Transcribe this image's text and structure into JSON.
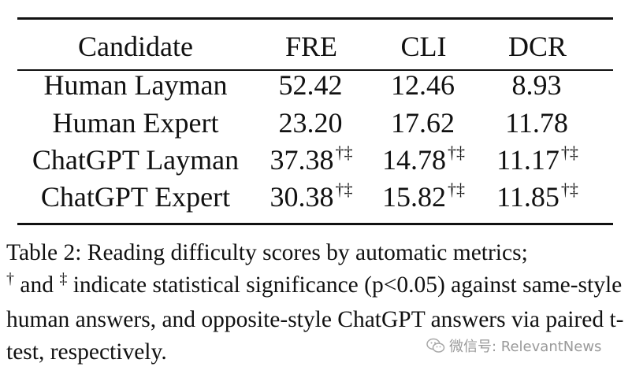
{
  "table": {
    "headers": [
      "Candidate",
      "FRE",
      "CLI",
      "DCR"
    ],
    "rows": [
      {
        "candidate": "Human Layman",
        "fre": "52.42",
        "fre_sup": "",
        "cli": "12.46",
        "cli_sup": "",
        "dcr": "8.93",
        "dcr_sup": ""
      },
      {
        "candidate": "Human Expert",
        "fre": "23.20",
        "fre_sup": "",
        "cli": "17.62",
        "cli_sup": "",
        "dcr": "11.78",
        "dcr_sup": ""
      },
      {
        "candidate": "ChatGPT Layman",
        "fre": "37.38",
        "fre_sup": "†‡",
        "cli": "14.78",
        "cli_sup": "†‡",
        "dcr": "11.17",
        "dcr_sup": "†‡"
      },
      {
        "candidate": "ChatGPT Expert",
        "fre": "30.38",
        "fre_sup": "†‡",
        "cli": "15.82",
        "cli_sup": "†‡",
        "dcr": "11.85",
        "dcr_sup": "†‡"
      }
    ]
  },
  "caption": {
    "part1": "Table 2: Reading difficulty scores by automatic metrics;",
    "sym1": "†",
    "part2": " and ",
    "sym2": "‡",
    "part3": " indicate statistical significance (p<0.05) against same-style human answers, and opposite-style ChatGPT answers via paired t-test, respectively."
  },
  "watermark": {
    "icon": "wechat-icon",
    "text": "微信号: RelevantNews"
  }
}
